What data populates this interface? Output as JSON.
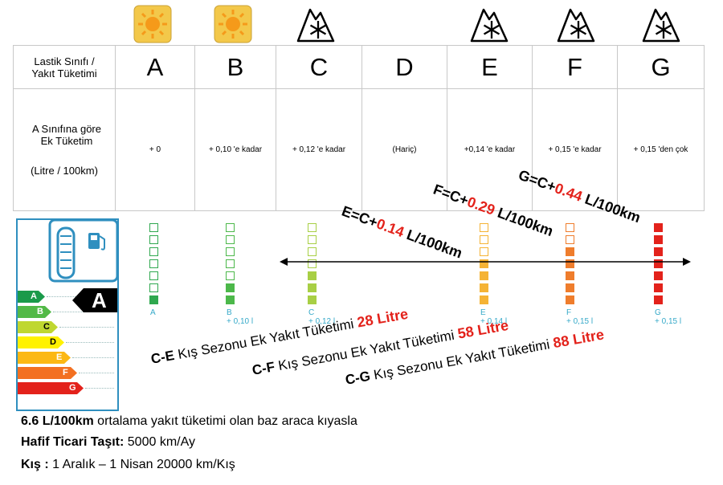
{
  "classes": [
    "A",
    "B",
    "C",
    "D",
    "E",
    "F",
    "G"
  ],
  "season_icons": [
    {
      "class": "A",
      "icon": "sun-icon"
    },
    {
      "class": "B",
      "icon": "sun-icon"
    },
    {
      "class": "C",
      "icon": "snowflake-mountain-icon"
    },
    {
      "class": "E",
      "icon": "snowflake-mountain-icon"
    },
    {
      "class": "F",
      "icon": "snowflake-mountain-icon"
    },
    {
      "class": "G",
      "icon": "snowflake-mountain-icon"
    }
  ],
  "table": {
    "header_label_line1": "Lastik Sınıfı /",
    "header_label_line2": "Yakıt Tüketimi",
    "row_label_line1": "A Sınıfına göre",
    "row_label_line2": "Ek Tüketim",
    "row_label_line3": "(Litre / 100km)",
    "consumption": [
      "+ 0",
      "+ 0,10 'e kadar",
      "+ 0,12 'e kadar",
      "(Hariç)",
      "+0,14 'e kadar",
      "+ 0,15 'e kadar",
      "+ 0,15 'den çok"
    ]
  },
  "label_classes": [
    "A",
    "B",
    "C",
    "D",
    "E",
    "F",
    "G"
  ],
  "label_active": "A",
  "column_captions": [
    {
      "letter": "A",
      "value": ""
    },
    {
      "letter": "B",
      "value": "+ 0,10 l"
    },
    {
      "letter": "C",
      "value": "+ 0,12 l"
    },
    {
      "letter": "E",
      "value": "+ 0,14 l"
    },
    {
      "letter": "F",
      "value": "+ 0,15 l"
    },
    {
      "letter": "G",
      "value": "+ 0,15 l"
    }
  ],
  "color_columns": [
    {
      "class": "A",
      "color": "#2fa84f",
      "filled": 1
    },
    {
      "class": "B",
      "color": "#4cb84a",
      "filled": 2
    },
    {
      "class": "C",
      "color": "#a8cf45",
      "filled": 3
    },
    {
      "class": "E",
      "color": "#f5b335",
      "filled": 4
    },
    {
      "class": "F",
      "color": "#ef7d2c",
      "filled": 5
    },
    {
      "class": "G",
      "color": "#e3221b",
      "filled": 7
    }
  ],
  "diagonal": [
    {
      "prefix": "E=C+",
      "value": "0.14",
      "suffix": " L/100km"
    },
    {
      "prefix": "F=C+",
      "value": "0.29",
      "suffix": " L/100km"
    },
    {
      "prefix": "G=C+",
      "value": "0.44",
      "suffix": " L/100km"
    }
  ],
  "season_lines": [
    {
      "pair": "C-E",
      "text": " Kış  Sezonu  Ek Yakıt Tüketimi ",
      "liters": "28 Litre"
    },
    {
      "pair": "C-F",
      "text": " Kış  Sezonu Ek Yakıt Tüketimi ",
      "liters": "58 Litre"
    },
    {
      "pair": "C-G",
      "text": " Kış  Sezonu  Ek Yakıt Tüketimi ",
      "liters": "88 Litre"
    }
  ],
  "footer": {
    "line1_bold": "6.6 L/100km",
    "line1_rest": " ortalama yakıt tüketimi olan baz araca kıyasla",
    "line2_bold": "Hafif Ticari Taşıt:",
    "line2_rest": "  5000 km/Ay",
    "line3_bold": "Kış :",
    "line3_rest": "   1 Aralık – 1 Nisan        20000 km/Kış"
  },
  "colors": {
    "sun_bg": "#f3c84a",
    "label_blue": "#36a9c9",
    "red": "#e3221b"
  }
}
